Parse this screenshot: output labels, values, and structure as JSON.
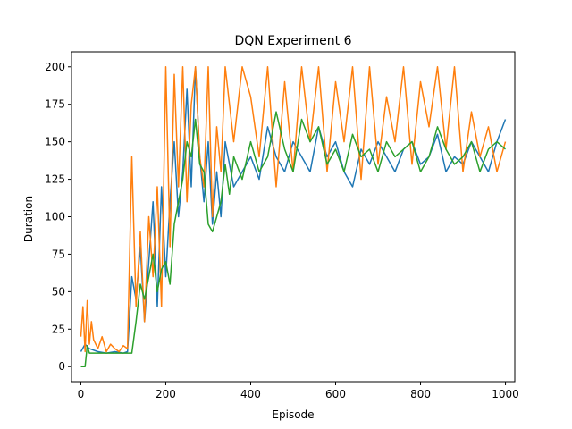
{
  "chart_data": {
    "type": "line",
    "title": "DQN Experiment 6",
    "xlabel": "Episode",
    "ylabel": "Duration",
    "xlim": [
      -22,
      1022
    ],
    "ylim": [
      -10,
      210
    ],
    "xticks": [
      0,
      200,
      400,
      600,
      800,
      1000
    ],
    "yticks": [
      0,
      25,
      50,
      75,
      100,
      125,
      150,
      175,
      200
    ],
    "grid": false,
    "legend": "none",
    "series": [
      {
        "color": "#1f77b4",
        "x": [
          0,
          10,
          20,
          40,
          60,
          80,
          100,
          110,
          120,
          130,
          140,
          150,
          160,
          170,
          180,
          190,
          200,
          210,
          220,
          230,
          240,
          250,
          260,
          270,
          280,
          290,
          300,
          310,
          320,
          330,
          340,
          360,
          380,
          400,
          420,
          440,
          460,
          480,
          500,
          520,
          540,
          560,
          580,
          600,
          620,
          640,
          660,
          680,
          700,
          720,
          740,
          760,
          780,
          800,
          820,
          840,
          860,
          880,
          900,
          920,
          940,
          960,
          980,
          1000
        ],
        "y": [
          10,
          15,
          12,
          10,
          9,
          10,
          9,
          10,
          60,
          45,
          80,
          30,
          70,
          110,
          40,
          120,
          60,
          110,
          150,
          100,
          130,
          185,
          120,
          200,
          140,
          110,
          150,
          95,
          130,
          100,
          150,
          120,
          130,
          140,
          125,
          160,
          140,
          130,
          150,
          140,
          130,
          160,
          140,
          150,
          130,
          120,
          145,
          135,
          150,
          140,
          130,
          145,
          150,
          135,
          140,
          155,
          130,
          140,
          135,
          150,
          140,
          130,
          150,
          165
        ]
      },
      {
        "color": "#ff7f0e",
        "x": [
          0,
          5,
          10,
          15,
          20,
          25,
          30,
          40,
          50,
          60,
          70,
          80,
          90,
          100,
          110,
          120,
          130,
          140,
          150,
          160,
          170,
          180,
          190,
          200,
          210,
          220,
          230,
          240,
          250,
          260,
          270,
          280,
          290,
          300,
          310,
          320,
          330,
          340,
          360,
          380,
          400,
          420,
          440,
          460,
          480,
          500,
          520,
          540,
          560,
          580,
          600,
          620,
          640,
          660,
          680,
          700,
          720,
          740,
          760,
          780,
          800,
          820,
          840,
          860,
          880,
          900,
          920,
          940,
          960,
          980,
          1000
        ],
        "y": [
          20,
          40,
          10,
          44,
          15,
          30,
          18,
          12,
          20,
          10,
          15,
          12,
          10,
          14,
          12,
          140,
          40,
          90,
          30,
          100,
          60,
          120,
          40,
          200,
          80,
          195,
          120,
          200,
          110,
          175,
          200,
          140,
          120,
          200,
          100,
          160,
          130,
          200,
          150,
          200,
          180,
          140,
          200,
          120,
          190,
          130,
          200,
          150,
          200,
          130,
          190,
          150,
          200,
          125,
          200,
          135,
          180,
          150,
          200,
          135,
          190,
          160,
          200,
          145,
          200,
          130,
          170,
          140,
          160,
          130,
          150
        ]
      },
      {
        "color": "#2ca02c",
        "x": [
          0,
          10,
          15,
          20,
          40,
          60,
          80,
          100,
          110,
          120,
          130,
          140,
          150,
          160,
          170,
          180,
          190,
          200,
          210,
          220,
          230,
          240,
          250,
          260,
          270,
          280,
          290,
          300,
          310,
          320,
          330,
          340,
          350,
          360,
          380,
          400,
          420,
          440,
          460,
          480,
          500,
          520,
          540,
          560,
          580,
          600,
          620,
          640,
          660,
          680,
          700,
          720,
          740,
          760,
          780,
          800,
          820,
          840,
          860,
          880,
          900,
          920,
          940,
          960,
          980,
          1000
        ],
        "y": [
          0,
          0,
          14,
          9,
          9,
          9,
          9,
          9,
          9,
          9,
          30,
          55,
          45,
          60,
          75,
          50,
          65,
          70,
          55,
          95,
          110,
          125,
          150,
          140,
          165,
          135,
          130,
          95,
          90,
          100,
          110,
          135,
          115,
          140,
          125,
          150,
          130,
          140,
          170,
          145,
          130,
          165,
          150,
          160,
          135,
          145,
          130,
          155,
          140,
          145,
          130,
          150,
          140,
          145,
          150,
          130,
          140,
          160,
          145,
          135,
          140,
          150,
          130,
          145,
          150,
          145
        ]
      }
    ]
  }
}
